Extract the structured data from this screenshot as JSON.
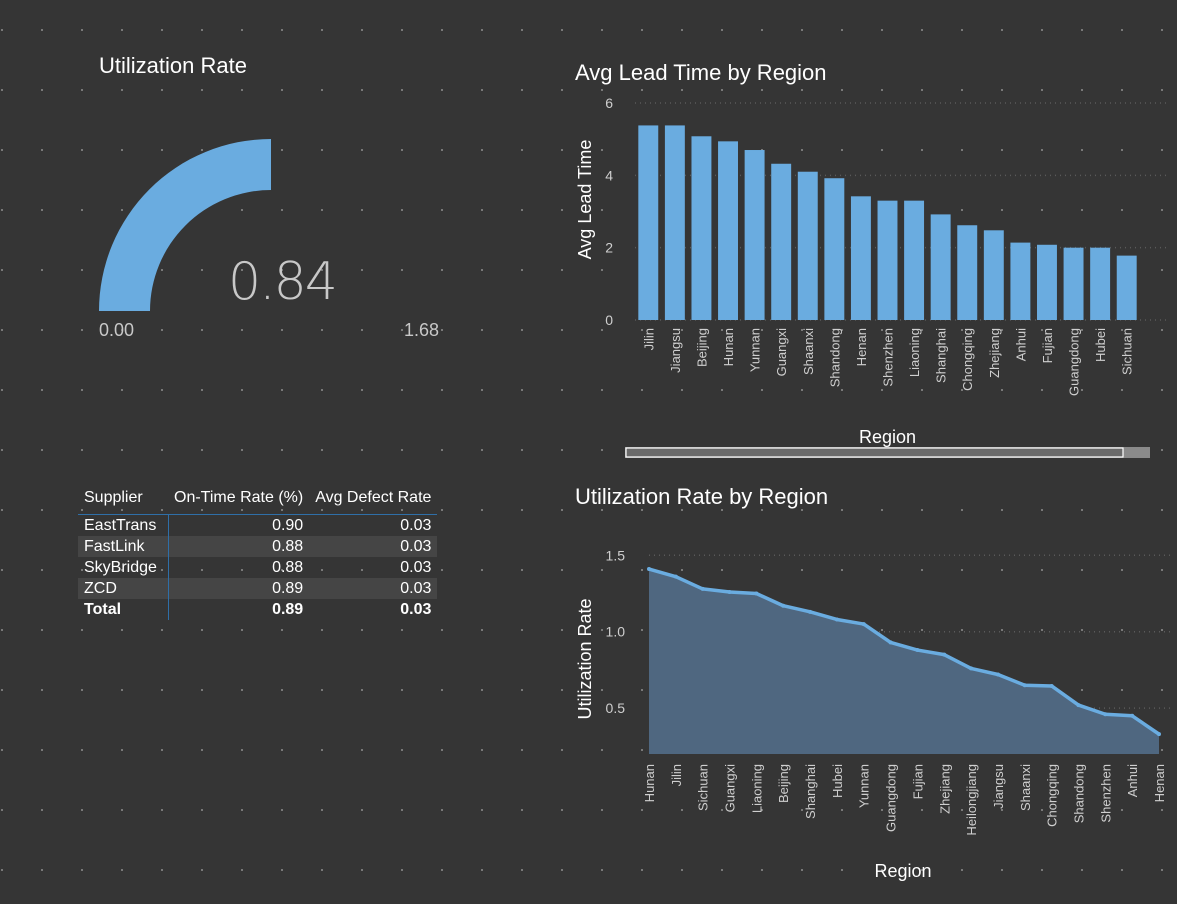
{
  "gauge": {
    "title": "Utilization Rate",
    "value": 0.84,
    "value_label": "0.84",
    "min_label": "0.00",
    "max_label": "1.68",
    "min": 0,
    "max": 1.68,
    "color": "#6aace0"
  },
  "table": {
    "headers": [
      "Supplier",
      "On-Time Rate (%)",
      "Avg Defect Rate"
    ],
    "rows": [
      [
        "EastTrans",
        "0.90",
        "0.03"
      ],
      [
        "FastLink",
        "0.88",
        "0.03"
      ],
      [
        "SkyBridge",
        "0.88",
        "0.03"
      ],
      [
        "ZCD",
        "0.89",
        "0.03"
      ]
    ],
    "total": [
      "Total",
      "0.89",
      "0.03"
    ]
  },
  "chart_data": [
    {
      "type": "bar",
      "title": "Avg Lead Time by Region",
      "xlabel": "Region",
      "ylabel": "Avg Lead Time",
      "ylim": [
        0,
        6
      ],
      "yticks": [
        0,
        2,
        4,
        6
      ],
      "color": "#6aace0",
      "grid": true,
      "categories": [
        "Jilin",
        "Jiangsu",
        "Beijing",
        "Hunan",
        "Yunnan",
        "Guangxi",
        "Shaanxi",
        "Shandong",
        "Henan",
        "Shenzhen",
        "Liaoning",
        "Shanghai",
        "Chongqing",
        "Zhejiang",
        "Anhui",
        "Fujian",
        "Guangdong",
        "Hubei",
        "Sichuan"
      ],
      "values": [
        5.38,
        5.38,
        5.08,
        4.94,
        4.7,
        4.32,
        4.1,
        3.92,
        3.42,
        3.3,
        3.3,
        2.92,
        2.62,
        2.48,
        2.14,
        2.08,
        2.0,
        2.0,
        1.78
      ]
    },
    {
      "type": "area",
      "title": "Utilization Rate by Region",
      "xlabel": "Region",
      "ylabel": "Utilization Rate",
      "ylim": [
        0.2,
        1.6
      ],
      "yticks": [
        0.5,
        1.0,
        1.5
      ],
      "ytick_labels": [
        "0.5",
        "1.0",
        "1.5"
      ],
      "color": "#6aace0",
      "fill": "#4f6780",
      "grid": true,
      "categories": [
        "Hunan",
        "Jilin",
        "Sichuan",
        "Guangxi",
        "Liaoning",
        "Beijing",
        "Shanghai",
        "Hubei",
        "Yunnan",
        "Guangdong",
        "Fujian",
        "Zhejiang",
        "Heilongjiang",
        "Jiangsu",
        "Shaanxi",
        "Chongqing",
        "Shandong",
        "Shenzhen",
        "Anhui",
        "Henan"
      ],
      "values": [
        1.41,
        1.36,
        1.28,
        1.26,
        1.25,
        1.17,
        1.13,
        1.08,
        1.05,
        0.93,
        0.88,
        0.85,
        0.76,
        0.72,
        0.65,
        0.645,
        0.52,
        0.46,
        0.45,
        0.33
      ]
    }
  ]
}
